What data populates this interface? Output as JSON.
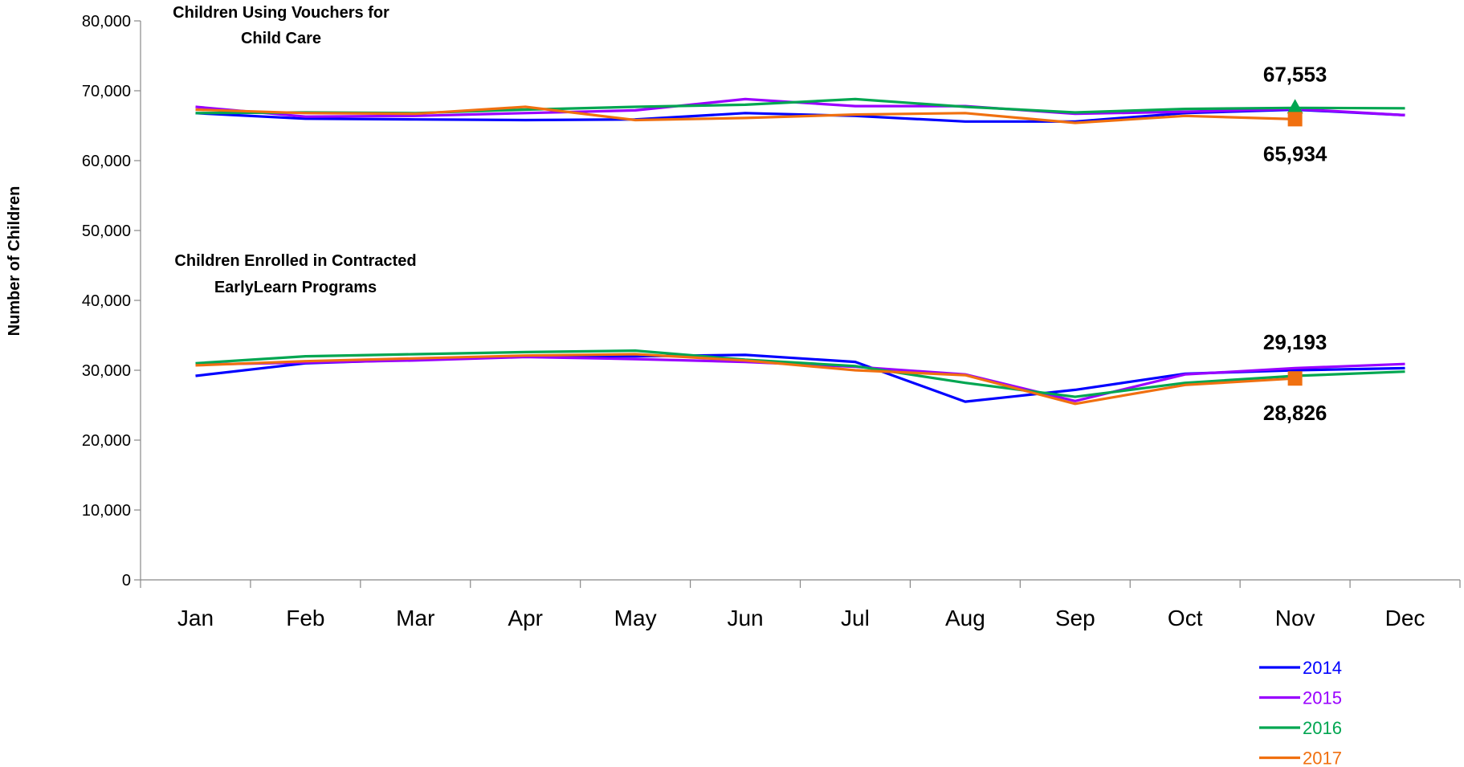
{
  "chart_data": {
    "type": "line",
    "categories": [
      "Jan",
      "Feb",
      "Mar",
      "Apr",
      "May",
      "Jun",
      "Jul",
      "Aug",
      "Sep",
      "Oct",
      "Nov",
      "Dec"
    ],
    "ylabel": "Number of Children",
    "ylim": [
      0,
      80000
    ],
    "yticks": [
      0,
      10000,
      20000,
      30000,
      40000,
      50000,
      60000,
      70000,
      80000
    ],
    "ytick_labels": [
      "0",
      "10,000",
      "20,000",
      "30,000",
      "40,000",
      "50,000",
      "60,000",
      "70,000",
      "80,000"
    ],
    "grid": false,
    "legend_position": "bottom-right",
    "groups": [
      {
        "label_line1": "Children Using Vouchers for",
        "label_line2": "Child Care",
        "series": [
          {
            "name": "2014",
            "color": "#0000ff",
            "values": [
              66800,
              66000,
              65900,
              65800,
              65900,
              66800,
              66400,
              65600,
              65600,
              66800,
              67300,
              66500
            ]
          },
          {
            "name": "2015",
            "color": "#9900ff",
            "values": [
              67700,
              66300,
              66400,
              66800,
              67200,
              68800,
              67800,
              67800,
              66700,
              67000,
              67400,
              66500
            ]
          },
          {
            "name": "2016",
            "color": "#00a651",
            "values": [
              66800,
              66900,
              66800,
              67300,
              67700,
              68000,
              68800,
              67700,
              66900,
              67400,
              67553,
              67500
            ]
          },
          {
            "name": "2017",
            "color": "#f07010",
            "values": [
              67300,
              66800,
              66700,
              67700,
              65800,
              66100,
              66600,
              66800,
              65400,
              66400,
              65934,
              null
            ]
          }
        ],
        "highlights": [
          {
            "series": "2016",
            "index": 10,
            "value": 67553,
            "label": "67,553",
            "marker": "triangle"
          },
          {
            "series": "2017",
            "index": 10,
            "value": 65934,
            "label": "65,934",
            "marker": "square"
          }
        ]
      },
      {
        "label_line1": "Children Enrolled in Contracted",
        "label_line2": "EarlyLearn Programs",
        "series": [
          {
            "name": "2014",
            "color": "#0000ff",
            "values": [
              29200,
              31000,
              31500,
              32000,
              32000,
              32200,
              31200,
              25500,
              27200,
              29500,
              30000,
              30300
            ]
          },
          {
            "name": "2015",
            "color": "#9900ff",
            "values": [
              30800,
              31100,
              31400,
              31900,
              31600,
              31200,
              30500,
              29400,
              25600,
              29400,
              30300,
              30900
            ]
          },
          {
            "name": "2016",
            "color": "#00a651",
            "values": [
              31000,
              32000,
              32300,
              32600,
              32800,
              31500,
              30600,
              28200,
              26200,
              28200,
              29193,
              29800
            ]
          },
          {
            "name": "2017",
            "color": "#f07010",
            "values": [
              30700,
              31300,
              31700,
              32100,
              32300,
              31400,
              30000,
              29300,
              25200,
              27900,
              28826,
              null
            ]
          }
        ],
        "highlights": [
          {
            "series": "2016",
            "index": 10,
            "value": 29193,
            "label": "29,193",
            "marker": "none"
          },
          {
            "series": "2017",
            "index": 10,
            "value": 28826,
            "label": "28,826",
            "marker": "square"
          }
        ]
      }
    ],
    "legend": [
      {
        "name": "2014",
        "color": "#0000ff"
      },
      {
        "name": "2015",
        "color": "#9900ff"
      },
      {
        "name": "2016",
        "color": "#00a651"
      },
      {
        "name": "2017",
        "color": "#f07010"
      }
    ]
  }
}
